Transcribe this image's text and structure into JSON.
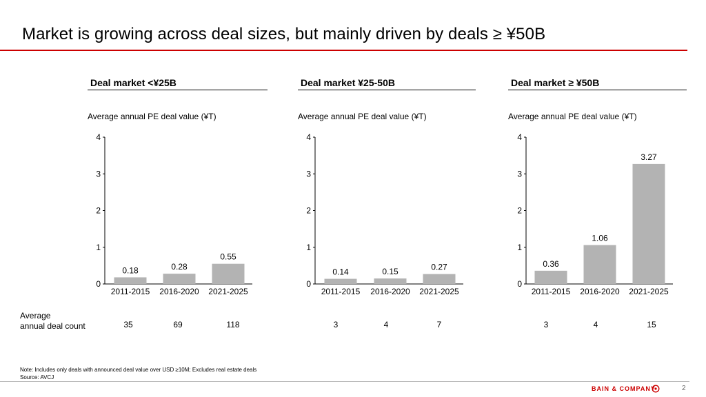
{
  "slide": {
    "title": "Market is growing across deal sizes, but mainly driven by deals ≥ ¥50B",
    "count_label": "Average\nannual deal count",
    "note": "Note: Includes only deals with announced deal value over USD ≥10M; Excludes real estate deals",
    "source": "Source: AVCJ",
    "logo": "BAIN & COMPANY",
    "page_number": "2",
    "accent_color": "#cc0000",
    "bar_color": "#b3b3b3"
  },
  "chart_data": [
    {
      "type": "bar",
      "title": "Deal market <¥25B",
      "ylabel": "Average annual PE deal value (¥T)",
      "categories": [
        "2011-2015",
        "2016-2020",
        "2021-2025"
      ],
      "values": [
        0.18,
        0.28,
        0.55
      ],
      "value_labels": [
        "0.18",
        "0.28",
        "0.55"
      ],
      "yticks": [
        "0",
        "1",
        "2",
        "3",
        "4"
      ],
      "ylim": [
        0,
        4
      ],
      "deal_counts": [
        "35",
        "69",
        "118"
      ]
    },
    {
      "type": "bar",
      "title": "Deal market ¥25-50B",
      "ylabel": "Average annual PE deal value (¥T)",
      "categories": [
        "2011-2015",
        "2016-2020",
        "2021-2025"
      ],
      "values": [
        0.14,
        0.15,
        0.27
      ],
      "value_labels": [
        "0.14",
        "0.15",
        "0.27"
      ],
      "yticks": [
        "0",
        "1",
        "2",
        "3",
        "4"
      ],
      "ylim": [
        0,
        4
      ],
      "deal_counts": [
        "3",
        "4",
        "7"
      ]
    },
    {
      "type": "bar",
      "title": "Deal market ≥ ¥50B",
      "ylabel": "Average annual PE deal value (¥T)",
      "categories": [
        "2011-2015",
        "2016-2020",
        "2021-2025"
      ],
      "values": [
        0.36,
        1.06,
        3.27
      ],
      "value_labels": [
        "0.36",
        "1.06",
        "3.27"
      ],
      "yticks": [
        "0",
        "1",
        "2",
        "3",
        "4"
      ],
      "ylim": [
        0,
        4
      ],
      "deal_counts": [
        "3",
        "4",
        "15"
      ]
    }
  ]
}
